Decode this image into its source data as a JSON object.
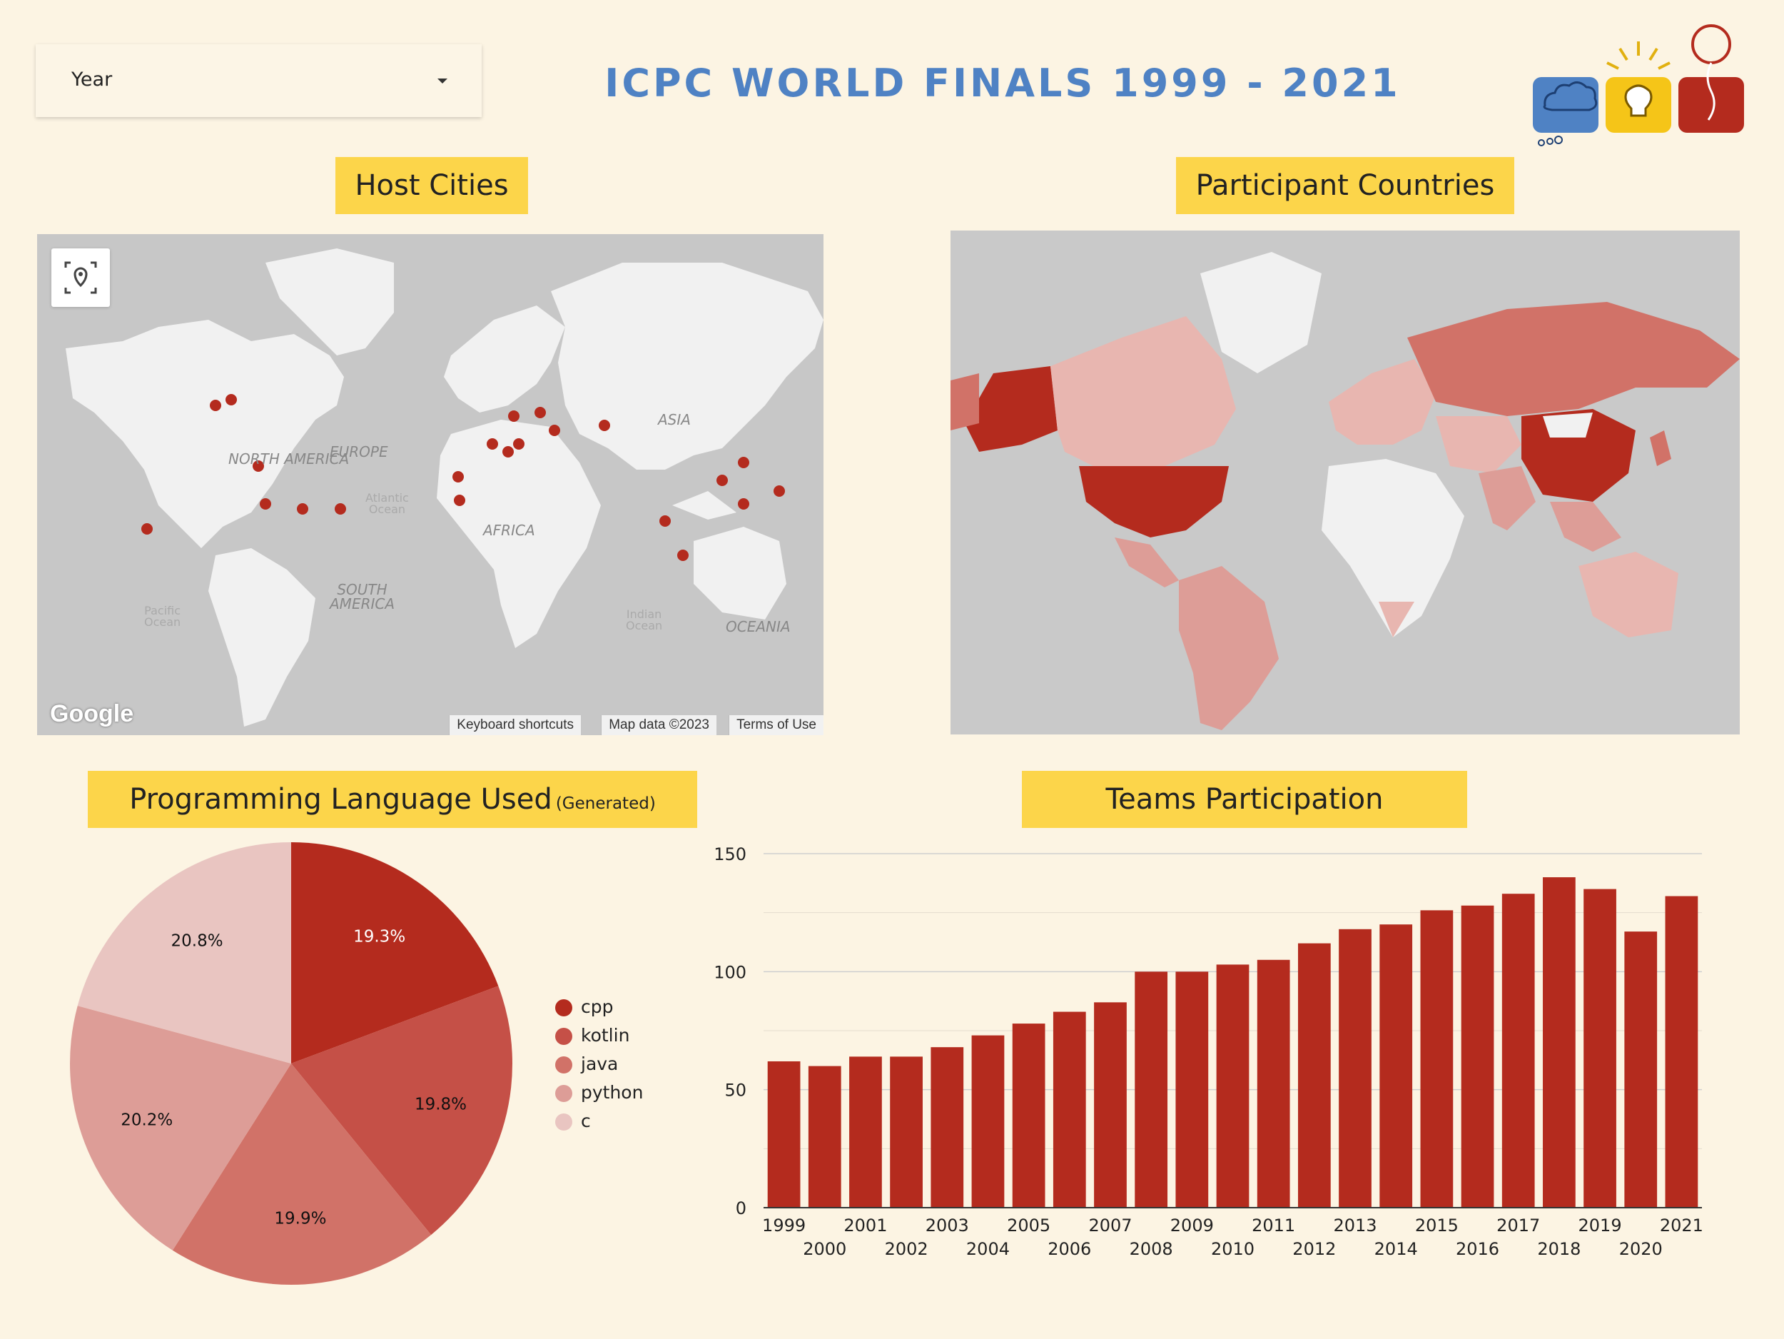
{
  "filter": {
    "label": "Year"
  },
  "title": "ICPC WORLD FINALS 1999 - 2021",
  "colors": {
    "accent": "#b42b1e",
    "header_bg": "#fcd54a",
    "page_bg": "#fcf4e3",
    "title": "#4f82c4"
  },
  "host_map": {
    "header": "Host Cities",
    "labels": {
      "north_america": "NORTH\nAMERICA",
      "south_america": "SOUTH\nAMERICA",
      "europe": "EUROPE",
      "africa": "AFRICA",
      "asia": "ASIA",
      "oceania": "OCEANIA",
      "atlantic": "Atlantic\nOcean",
      "pacific": "Pacific\nOcean",
      "indian": "Indian\nOcean"
    },
    "google": "Google",
    "attribution": [
      "Keyboard shortcuts",
      "Map data ©2023",
      "Terms of Use"
    ],
    "locate_icon": "location-pin-icon",
    "marker_color": "#b42b1e"
  },
  "country_map": {
    "header": "Participant Countries"
  },
  "pie": {
    "header_main": "Programming Language Used",
    "header_small": "(Generated)",
    "chart_data": {
      "type": "pie",
      "labels": [
        "cpp",
        "kotlin",
        "java",
        "python",
        "c"
      ],
      "values": [
        19.3,
        19.8,
        19.9,
        20.2,
        20.8
      ],
      "value_labels": [
        "19.3%",
        "19.8%",
        "19.9%",
        "20.2%",
        "20.8%"
      ],
      "colors": [
        "#b42b1e",
        "#c55047",
        "#d17268",
        "#dd9d97",
        "#e9c5c1"
      ],
      "legend_position": "right"
    }
  },
  "bars": {
    "header": "Teams Participation",
    "chart_data": {
      "type": "bar",
      "categories": [
        "1999",
        "2000",
        "2001",
        "2002",
        "2003",
        "2004",
        "2005",
        "2006",
        "2007",
        "2008",
        "2009",
        "2010",
        "2011",
        "2012",
        "2013",
        "2014",
        "2015",
        "2016",
        "2017",
        "2018",
        "2019",
        "2020",
        "2021"
      ],
      "values": [
        62,
        60,
        64,
        64,
        68,
        73,
        78,
        83,
        87,
        100,
        100,
        103,
        105,
        112,
        118,
        120,
        126,
        128,
        133,
        140,
        135,
        117,
        132
      ],
      "ylim": [
        0,
        150
      ],
      "yticks": [
        0,
        50,
        100,
        150
      ],
      "color": "#b42b1e",
      "grid": true
    }
  }
}
